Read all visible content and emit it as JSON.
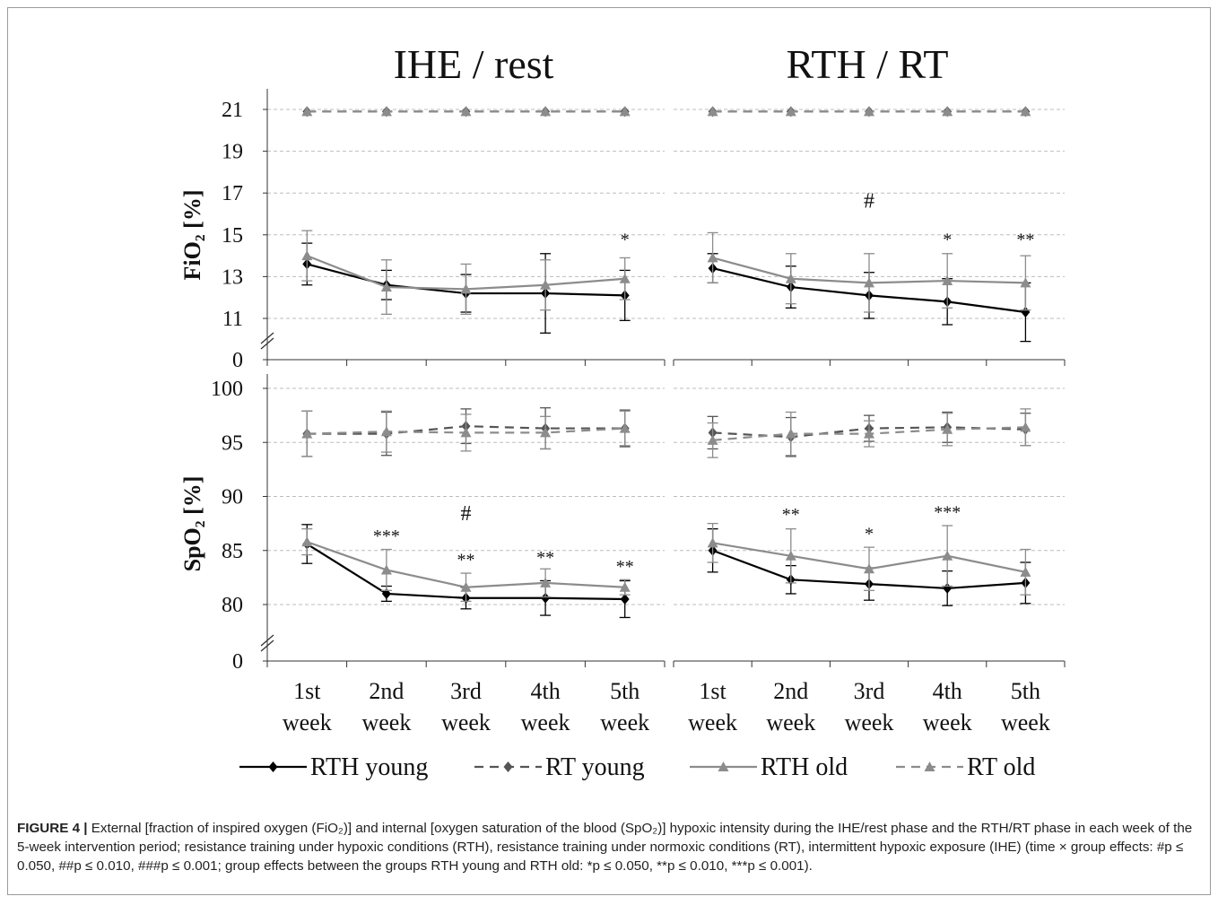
{
  "chart_data": [
    {
      "type": "line",
      "panel": "IHE / rest",
      "title": "IHE / rest",
      "ylabel": "FiO₂ [%]",
      "yticks": [
        0,
        11,
        13,
        15,
        17,
        19,
        21
      ],
      "ylim": [
        11,
        22
      ],
      "axis_break": true,
      "grid": true,
      "categories": [
        "1st week",
        "2nd week",
        "3rd week",
        "4th week",
        "5th week"
      ],
      "series": [
        {
          "name": "RTH young",
          "style": "solid",
          "color": "#000000",
          "marker": "diamond",
          "values": [
            13.6,
            12.6,
            12.2,
            12.2,
            12.1
          ],
          "err": [
            1.0,
            0.7,
            0.9,
            1.9,
            1.2
          ]
        },
        {
          "name": "RT young",
          "style": "dashed",
          "color": "#555555",
          "marker": "diamond",
          "values": [
            20.9,
            20.9,
            20.9,
            20.9,
            20.9
          ],
          "err": [
            0,
            0,
            0,
            0,
            0
          ]
        },
        {
          "name": "RTH old",
          "style": "solid",
          "color": "#8c8c8c",
          "marker": "triangle",
          "values": [
            14.0,
            12.5,
            12.4,
            12.6,
            12.9
          ],
          "err": [
            1.2,
            1.3,
            1.2,
            1.2,
            1.0
          ]
        },
        {
          "name": "RT old",
          "style": "dashed",
          "color": "#8c8c8c",
          "marker": "triangle",
          "values": [
            20.9,
            20.9,
            20.9,
            20.9,
            20.9
          ],
          "err": [
            0,
            0,
            0,
            0,
            0
          ]
        }
      ],
      "annotations": [
        {
          "category": "5th week",
          "text": "*",
          "y": 14.5
        }
      ]
    },
    {
      "type": "line",
      "panel": "RTH / RT",
      "title": "RTH / RT",
      "ylabel": "FiO₂ [%]",
      "yticks": [
        0,
        11,
        13,
        15,
        17,
        19,
        21
      ],
      "ylim": [
        11,
        22
      ],
      "axis_break": true,
      "grid": true,
      "categories": [
        "1st week",
        "2nd week",
        "3rd week",
        "4th week",
        "5th week"
      ],
      "series": [
        {
          "name": "RTH young",
          "style": "solid",
          "color": "#000000",
          "marker": "diamond",
          "values": [
            13.4,
            12.5,
            12.1,
            11.8,
            11.3
          ],
          "err": [
            0.7,
            1.0,
            1.1,
            1.1,
            1.4
          ]
        },
        {
          "name": "RT young",
          "style": "dashed",
          "color": "#555555",
          "marker": "diamond",
          "values": [
            20.9,
            20.9,
            20.9,
            20.9,
            20.9
          ],
          "err": [
            0,
            0,
            0,
            0,
            0
          ]
        },
        {
          "name": "RTH old",
          "style": "solid",
          "color": "#8c8c8c",
          "marker": "triangle",
          "values": [
            13.9,
            12.9,
            12.7,
            12.8,
            12.7
          ],
          "err": [
            1.2,
            1.2,
            1.4,
            1.3,
            1.3
          ]
        },
        {
          "name": "RT old",
          "style": "dashed",
          "color": "#8c8c8c",
          "marker": "triangle",
          "values": [
            20.9,
            20.9,
            20.9,
            20.9,
            20.9
          ],
          "err": [
            0,
            0,
            0,
            0,
            0
          ]
        }
      ],
      "annotations": [
        {
          "category": "3rd week",
          "text": "#",
          "y": 16.3,
          "kind": "hash"
        },
        {
          "category": "4th week",
          "text": "*",
          "y": 14.5
        },
        {
          "category": "5th week",
          "text": "**",
          "y": 14.5
        }
      ]
    },
    {
      "type": "line",
      "panel": "IHE / rest",
      "ylabel": "SpO₂ [%]",
      "yticks": [
        0,
        80,
        85,
        90,
        95,
        100
      ],
      "ylim": [
        80,
        100
      ],
      "axis_break": true,
      "grid": true,
      "categories": [
        "1st week",
        "2nd week",
        "3rd week",
        "4th week",
        "5th week"
      ],
      "series": [
        {
          "name": "RTH young",
          "style": "solid",
          "color": "#000000",
          "marker": "diamond",
          "values": [
            85.6,
            81.0,
            80.6,
            80.6,
            80.5
          ],
          "err": [
            1.8,
            0.7,
            1.0,
            1.6,
            1.7
          ]
        },
        {
          "name": "RT young",
          "style": "dashed",
          "color": "#555555",
          "marker": "diamond",
          "values": [
            95.8,
            95.8,
            96.5,
            96.3,
            96.3
          ],
          "err": [
            2.1,
            2.0,
            1.6,
            1.9,
            1.7
          ]
        },
        {
          "name": "RTH old",
          "style": "solid",
          "color": "#8c8c8c",
          "marker": "triangle",
          "values": [
            85.8,
            83.2,
            81.6,
            82.0,
            81.6
          ],
          "err": [
            1.2,
            1.9,
            1.3,
            1.3,
            0.7
          ]
        },
        {
          "name": "RT old",
          "style": "dashed",
          "color": "#8c8c8c",
          "marker": "triangle",
          "values": [
            95.8,
            96.0,
            95.9,
            95.9,
            96.3
          ],
          "err": [
            2.1,
            1.9,
            1.7,
            1.5,
            1.6
          ]
        }
      ],
      "annotations": [
        {
          "category": "2nd week",
          "text": "***",
          "y": 85.8
        },
        {
          "category": "3rd week",
          "text": "#",
          "y": 87.8,
          "kind": "hash"
        },
        {
          "category": "3rd week",
          "text": "**",
          "y": 83.6
        },
        {
          "category": "4th week",
          "text": "**",
          "y": 83.8
        },
        {
          "category": "5th week",
          "text": "**",
          "y": 83.0
        }
      ]
    },
    {
      "type": "line",
      "panel": "RTH / RT",
      "ylabel": "SpO₂ [%]",
      "yticks": [
        0,
        80,
        85,
        90,
        95,
        100
      ],
      "ylim": [
        80,
        100
      ],
      "axis_break": true,
      "grid": true,
      "categories": [
        "1st week",
        "2nd week",
        "3rd week",
        "4th week",
        "5th week"
      ],
      "series": [
        {
          "name": "RTH young",
          "style": "solid",
          "color": "#000000",
          "marker": "diamond",
          "values": [
            85.0,
            82.3,
            81.9,
            81.5,
            82.0
          ],
          "err": [
            2.0,
            1.3,
            1.5,
            1.6,
            1.9
          ]
        },
        {
          "name": "RT young",
          "style": "dashed",
          "color": "#555555",
          "marker": "diamond",
          "values": [
            95.9,
            95.5,
            96.3,
            96.4,
            96.2
          ],
          "err": [
            1.5,
            1.8,
            1.2,
            1.4,
            1.5
          ]
        },
        {
          "name": "RTH old",
          "style": "solid",
          "color": "#8c8c8c",
          "marker": "triangle",
          "values": [
            85.7,
            84.5,
            83.3,
            84.5,
            83.0
          ],
          "err": [
            1.8,
            2.5,
            2.0,
            2.8,
            2.1
          ]
        },
        {
          "name": "RT old",
          "style": "dashed",
          "color": "#8c8c8c",
          "marker": "triangle",
          "values": [
            95.2,
            95.8,
            95.8,
            96.2,
            96.4
          ],
          "err": [
            1.6,
            2.0,
            1.2,
            1.5,
            1.7
          ]
        }
      ],
      "annotations": [
        {
          "category": "2nd week",
          "text": "**",
          "y": 87.8
        },
        {
          "category": "3rd week",
          "text": "*",
          "y": 86.0
        },
        {
          "category": "4th week",
          "text": "***",
          "y": 88.0
        }
      ]
    }
  ],
  "legend": {
    "placement": "bottom",
    "items": [
      {
        "label": "RTH young",
        "style": "solid",
        "color": "#000000",
        "marker": "diamond"
      },
      {
        "label": "RT young",
        "style": "dashed",
        "color": "#555555",
        "marker": "diamond"
      },
      {
        "label": "RTH old",
        "style": "solid",
        "color": "#8c8c8c",
        "marker": "triangle"
      },
      {
        "label": "RT old",
        "style": "dashed",
        "color": "#8c8c8c",
        "marker": "triangle"
      }
    ]
  },
  "caption": {
    "label": "FIGURE 4 |",
    "text": "External [fraction of inspired oxygen (FiO₂)] and internal [oxygen saturation of the blood (SpO₂)] hypoxic intensity during the IHE/rest phase and the RTH/RT phase in each week of the 5-week intervention period; resistance training under hypoxic conditions (RTH), resistance training under normoxic conditions (RT), intermittent hypoxic exposure (IHE) (time × group effects: #p ≤ 0.050, ##p ≤ 0.010, ###p ≤ 0.001; group effects between the groups RTH young and RTH old: *p ≤ 0.050, **p ≤ 0.010, ***p ≤ 0.001)."
  }
}
